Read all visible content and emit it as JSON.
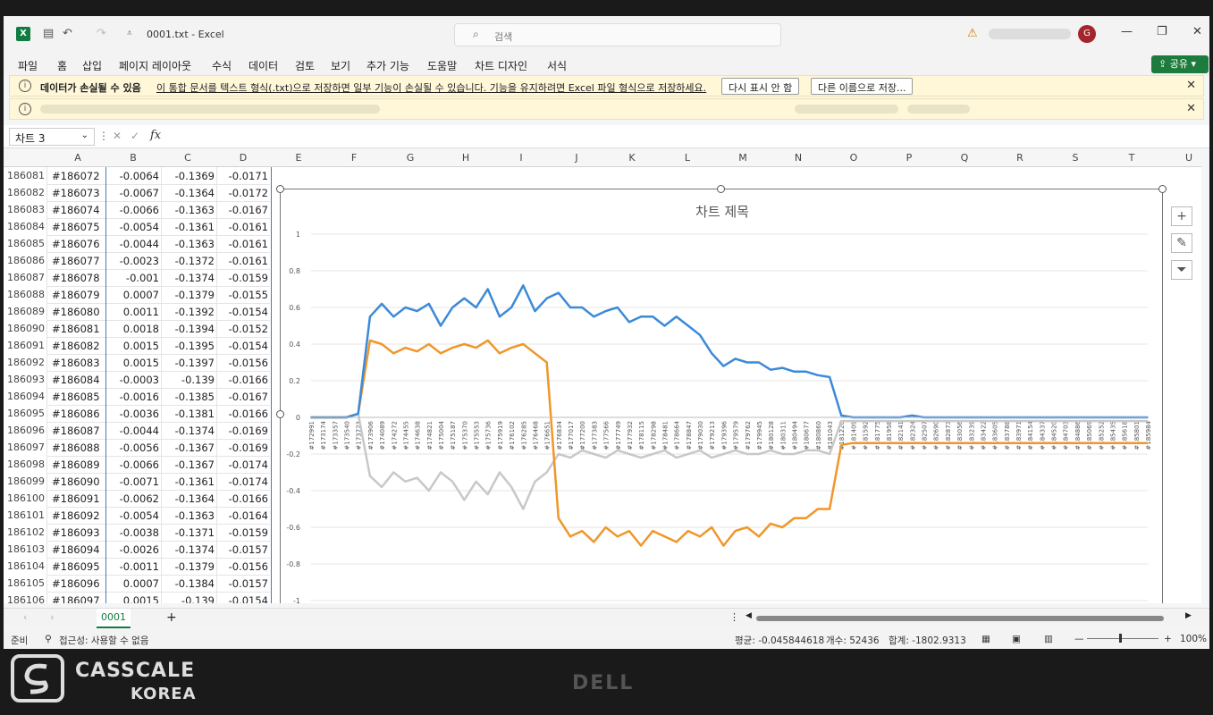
{
  "app": {
    "title": "0001.txt  -  Excel",
    "logo": "X",
    "search_placeholder": "검색",
    "avatar_initial": "G",
    "share_label": "공유"
  },
  "menu": [
    "파일",
    "홈",
    "삽입",
    "페이지 레이아웃",
    "수식",
    "데이터",
    "검토",
    "보기",
    "추가 기능",
    "도움말",
    "차트 디자인",
    "서식"
  ],
  "message_bar": {
    "bold": "데이터가 손실될 수 있음",
    "text": "이 통합 문서를 텍스트 형식(.txt)으로 저장하면 일부 기능이 손실될 수 있습니다. 기능을 유지하려면 Excel 파일 형식으로 저장하세요.",
    "btn_dismiss": "다시 표시 안 함",
    "btn_save_as": "다른 이름으로 저장..."
  },
  "formula_bar": {
    "name_box": "차트 3",
    "fx": "fx"
  },
  "columns": [
    "A",
    "B",
    "C",
    "D",
    "E",
    "F",
    "G",
    "H",
    "I",
    "J",
    "K",
    "L",
    "M",
    "N",
    "O",
    "P",
    "Q",
    "R",
    "S",
    "T",
    "U"
  ],
  "rows": [
    {
      "num": "186081",
      "a": "#186072",
      "b": "-0.0064",
      "c": "-0.1369",
      "d": "-0.0171"
    },
    {
      "num": "186082",
      "a": "#186073",
      "b": "-0.0067",
      "c": "-0.1364",
      "d": "-0.0172"
    },
    {
      "num": "186083",
      "a": "#186074",
      "b": "-0.0066",
      "c": "-0.1363",
      "d": "-0.0167"
    },
    {
      "num": "186084",
      "a": "#186075",
      "b": "-0.0054",
      "c": "-0.1361",
      "d": "-0.0161"
    },
    {
      "num": "186085",
      "a": "#186076",
      "b": "-0.0044",
      "c": "-0.1363",
      "d": "-0.0161"
    },
    {
      "num": "186086",
      "a": "#186077",
      "b": "-0.0023",
      "c": "-0.1372",
      "d": "-0.0161"
    },
    {
      "num": "186087",
      "a": "#186078",
      "b": "-0.001",
      "c": "-0.1374",
      "d": "-0.0159"
    },
    {
      "num": "186088",
      "a": "#186079",
      "b": "0.0007",
      "c": "-0.1379",
      "d": "-0.0155"
    },
    {
      "num": "186089",
      "a": "#186080",
      "b": "0.0011",
      "c": "-0.1392",
      "d": "-0.0154"
    },
    {
      "num": "186090",
      "a": "#186081",
      "b": "0.0018",
      "c": "-0.1394",
      "d": "-0.0152"
    },
    {
      "num": "186091",
      "a": "#186082",
      "b": "0.0015",
      "c": "-0.1395",
      "d": "-0.0154"
    },
    {
      "num": "186092",
      "a": "#186083",
      "b": "0.0015",
      "c": "-0.1397",
      "d": "-0.0156"
    },
    {
      "num": "186093",
      "a": "#186084",
      "b": "-0.0003",
      "c": "-0.139",
      "d": "-0.0166"
    },
    {
      "num": "186094",
      "a": "#186085",
      "b": "-0.0016",
      "c": "-0.1385",
      "d": "-0.0167"
    },
    {
      "num": "186095",
      "a": "#186086",
      "b": "-0.0036",
      "c": "-0.1381",
      "d": "-0.0166"
    },
    {
      "num": "186096",
      "a": "#186087",
      "b": "-0.0044",
      "c": "-0.1374",
      "d": "-0.0169"
    },
    {
      "num": "186097",
      "a": "#186088",
      "b": "-0.0056",
      "c": "-0.1367",
      "d": "-0.0169"
    },
    {
      "num": "186098",
      "a": "#186089",
      "b": "-0.0066",
      "c": "-0.1367",
      "d": "-0.0174"
    },
    {
      "num": "186099",
      "a": "#186090",
      "b": "-0.0071",
      "c": "-0.1361",
      "d": "-0.0174"
    },
    {
      "num": "186100",
      "a": "#186091",
      "b": "-0.0062",
      "c": "-0.1364",
      "d": "-0.0166"
    },
    {
      "num": "186101",
      "a": "#186092",
      "b": "-0.0054",
      "c": "-0.1363",
      "d": "-0.0164"
    },
    {
      "num": "186102",
      "a": "#186093",
      "b": "-0.0038",
      "c": "-0.1371",
      "d": "-0.0159"
    },
    {
      "num": "186103",
      "a": "#186094",
      "b": "-0.0026",
      "c": "-0.1374",
      "d": "-0.0157"
    },
    {
      "num": "186104",
      "a": "#186095",
      "b": "-0.0011",
      "c": "-0.1379",
      "d": "-0.0156"
    },
    {
      "num": "186105",
      "a": "#186096",
      "b": "0.0007",
      "c": "-0.1384",
      "d": "-0.0157"
    },
    {
      "num": "186106",
      "a": "#186097",
      "b": "0.0015",
      "c": "-0.139",
      "d": "-0.0154"
    }
  ],
  "chart_data": {
    "type": "line",
    "title": "차트 제목",
    "ylim": [
      -1,
      1
    ],
    "yticks": [
      "1",
      "0.8",
      "0.6",
      "0.4",
      "0.2",
      "0",
      "-0.2",
      "-0.4",
      "-0.6",
      "-0.8",
      "-1"
    ],
    "xticks": [
      "#172991",
      "#173174",
      "#173357",
      "#173540",
      "#173723",
      "#173906",
      "#174089",
      "#174272",
      "#174455",
      "#174638",
      "#174821",
      "#175004",
      "#175187",
      "#175370",
      "#175553",
      "#175736",
      "#175919",
      "#176102",
      "#176285",
      "#176468",
      "#176651",
      "#176834",
      "#177017",
      "#177200",
      "#177383",
      "#177566",
      "#177749",
      "#177932",
      "#178115",
      "#178298",
      "#178481",
      "#178664",
      "#178847",
      "#179030",
      "#179213",
      "#179396",
      "#179579",
      "#179762",
      "#179945",
      "#180128",
      "#180311",
      "#180494",
      "#180677",
      "#180860",
      "#181043",
      "#181226",
      "#181409",
      "#181592",
      "#181775",
      "#181958",
      "#182141",
      "#182324",
      "#182507",
      "#182690",
      "#182873",
      "#183056",
      "#183239",
      "#183422",
      "#183605",
      "#183788",
      "#183971",
      "#184154",
      "#184337",
      "#184520",
      "#184703",
      "#184886",
      "#185069",
      "#185252",
      "#185435",
      "#185618",
      "#185801",
      "#185984"
    ],
    "series": [
      {
        "color": "#3b8ad8",
        "values": [
          0,
          0,
          0,
          0,
          0.02,
          0.55,
          0.62,
          0.55,
          0.6,
          0.58,
          0.62,
          0.5,
          0.6,
          0.65,
          0.6,
          0.7,
          0.55,
          0.6,
          0.72,
          0.58,
          0.65,
          0.68,
          0.6,
          0.6,
          0.55,
          0.58,
          0.6,
          0.52,
          0.55,
          0.55,
          0.5,
          0.55,
          0.5,
          0.45,
          0.35,
          0.28,
          0.32,
          0.3,
          0.3,
          0.26,
          0.27,
          0.25,
          0.25,
          0.23,
          0.22,
          0.01,
          0,
          0,
          0,
          0,
          0,
          0.01,
          0,
          0,
          0,
          0,
          0,
          0,
          0,
          0,
          0,
          0,
          0,
          0,
          0,
          0,
          0,
          0,
          0,
          0,
          0,
          0
        ]
      },
      {
        "color": "#f0962a",
        "values": [
          0,
          0,
          0,
          0,
          0.02,
          0.42,
          0.4,
          0.35,
          0.38,
          0.36,
          0.4,
          0.35,
          0.38,
          0.4,
          0.38,
          0.42,
          0.35,
          0.38,
          0.4,
          0.35,
          0.3,
          -0.55,
          -0.65,
          -0.62,
          -0.68,
          -0.6,
          -0.65,
          -0.62,
          -0.7,
          -0.62,
          -0.65,
          -0.68,
          -0.62,
          -0.65,
          -0.6,
          -0.7,
          -0.62,
          -0.6,
          -0.65,
          -0.58,
          -0.6,
          -0.55,
          -0.55,
          -0.5,
          -0.5,
          -0.15,
          -0.14,
          -0.14,
          -0.14,
          -0.14,
          -0.14,
          -0.14,
          -0.14,
          -0.14,
          -0.14,
          -0.14,
          -0.14,
          -0.14,
          -0.14,
          -0.14,
          -0.14,
          -0.14,
          -0.14,
          -0.14,
          -0.14,
          -0.14,
          -0.14,
          -0.14,
          -0.14,
          -0.14,
          -0.14,
          -0.14
        ]
      },
      {
        "color": "#c8c8c8",
        "values": [
          0,
          0,
          0,
          0,
          0.02,
          -0.32,
          -0.38,
          -0.3,
          -0.35,
          -0.33,
          -0.4,
          -0.3,
          -0.35,
          -0.45,
          -0.35,
          -0.42,
          -0.3,
          -0.38,
          -0.5,
          -0.35,
          -0.3,
          -0.2,
          -0.22,
          -0.18,
          -0.2,
          -0.22,
          -0.18,
          -0.2,
          -0.22,
          -0.2,
          -0.18,
          -0.22,
          -0.2,
          -0.18,
          -0.22,
          -0.2,
          -0.18,
          -0.2,
          -0.2,
          -0.18,
          -0.2,
          -0.2,
          -0.18,
          -0.18,
          -0.2,
          -0.02,
          -0.02,
          -0.02,
          -0.02,
          -0.02,
          -0.02,
          -0.02,
          -0.02,
          -0.02,
          -0.02,
          -0.02,
          -0.02,
          -0.02,
          -0.02,
          -0.02,
          -0.02,
          -0.02,
          -0.02,
          -0.02,
          -0.02,
          -0.02,
          -0.02,
          -0.02,
          -0.02,
          -0.02,
          -0.02,
          -0.02
        ]
      }
    ]
  },
  "sheet": {
    "tab": "0001",
    "add": "+"
  },
  "status": {
    "ready": "준비",
    "accessibility": "접근성: 사용할 수 없음",
    "average": "평균: -0.045844618",
    "count": "개수: 52436",
    "sum": "합계: -1802.9313",
    "zoom": "100%"
  },
  "bezel": {
    "brand_line1": "CASSCALE",
    "brand_line2": "KOREA",
    "monitor_brand": "DELL"
  }
}
